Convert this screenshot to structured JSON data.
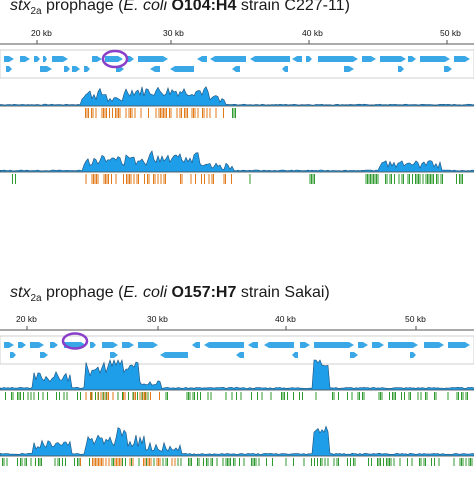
{
  "panels": [
    {
      "title": {
        "gene": "stx",
        "gene_sub": "2a",
        "word": " prophage (",
        "species": "E. coli",
        "serotype": "O104:H4",
        "strain": " strain C227-11)"
      },
      "scale_labels": [
        "20 kb",
        "30 kb",
        "40 kb",
        "50 kb"
      ],
      "colors": {
        "gene": "#3aa8e6",
        "highlight": "#8a3fc9",
        "coverage": "#1e9de8",
        "orange": "#e07a1a",
        "green": "#2f9a2f"
      }
    },
    {
      "title": {
        "gene": "stx",
        "gene_sub": "2a",
        "word": " prophage (",
        "species": "E. coli",
        "serotype": "O157:H7",
        "strain": " strain Sakai)"
      },
      "scale_labels": [
        "20 kb",
        "30 kb",
        "40 kb",
        "50 kb"
      ],
      "colors": {
        "gene": "#3aa8e6",
        "highlight": "#8a3fc9",
        "coverage": "#1e9de8",
        "orange": "#e07a1a",
        "green": "#2f9a2f"
      }
    }
  ]
}
